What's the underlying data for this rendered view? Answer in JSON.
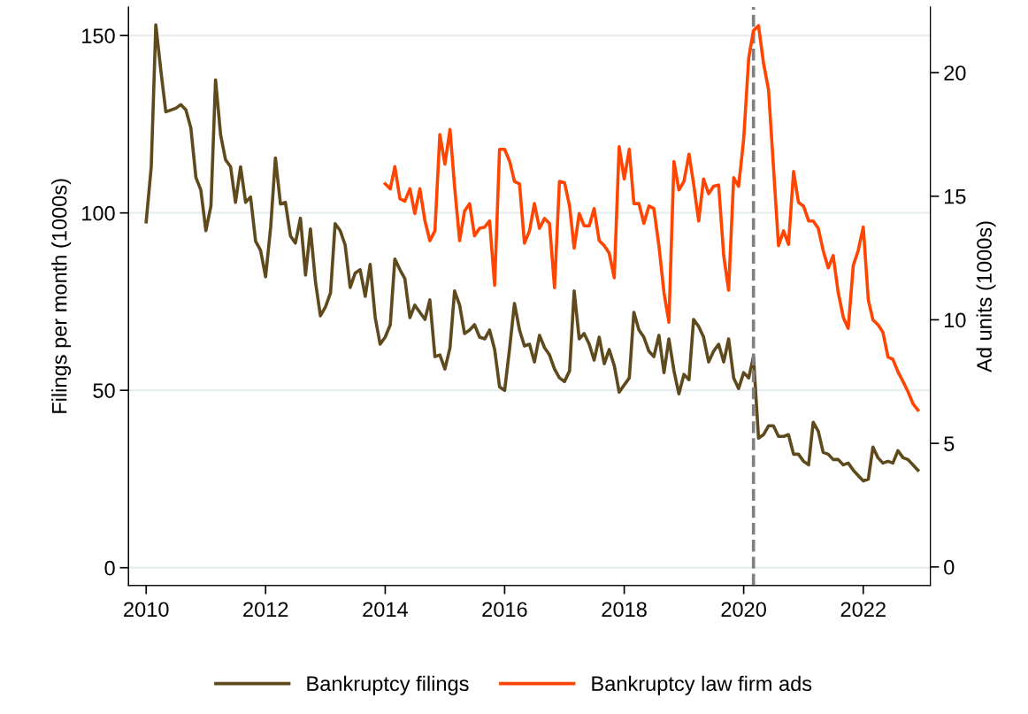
{
  "chart_data": {
    "type": "line",
    "ylabel": "Filings per month (1000s)",
    "y2label": "Ad units (1000s)",
    "x": [
      "2010-01",
      "2010-02",
      "2010-03",
      "2010-04",
      "2010-05",
      "2010-06",
      "2010-07",
      "2010-08",
      "2010-09",
      "2010-10",
      "2010-11",
      "2010-12",
      "2011-01",
      "2011-02",
      "2011-03",
      "2011-04",
      "2011-05",
      "2011-06",
      "2011-07",
      "2011-08",
      "2011-09",
      "2011-10",
      "2011-11",
      "2011-12",
      "2012-01",
      "2012-02",
      "2012-03",
      "2012-04",
      "2012-05",
      "2012-06",
      "2012-07",
      "2012-08",
      "2012-09",
      "2012-10",
      "2012-11",
      "2012-12",
      "2013-01",
      "2013-02",
      "2013-03",
      "2013-04",
      "2013-05",
      "2013-06",
      "2013-07",
      "2013-08",
      "2013-09",
      "2013-10",
      "2013-11",
      "2013-12",
      "2014-01",
      "2014-02",
      "2014-03",
      "2014-04",
      "2014-05",
      "2014-06",
      "2014-07",
      "2014-08",
      "2014-09",
      "2014-10",
      "2014-11",
      "2014-12",
      "2015-01",
      "2015-02",
      "2015-03",
      "2015-04",
      "2015-05",
      "2015-06",
      "2015-07",
      "2015-08",
      "2015-09",
      "2015-10",
      "2015-11",
      "2015-12",
      "2016-01",
      "2016-02",
      "2016-03",
      "2016-04",
      "2016-05",
      "2016-06",
      "2016-07",
      "2016-08",
      "2016-09",
      "2016-10",
      "2016-11",
      "2016-12",
      "2017-01",
      "2017-02",
      "2017-03",
      "2017-04",
      "2017-05",
      "2017-06",
      "2017-07",
      "2017-08",
      "2017-09",
      "2017-10",
      "2017-11",
      "2017-12",
      "2018-01",
      "2018-02",
      "2018-03",
      "2018-04",
      "2018-05",
      "2018-06",
      "2018-07",
      "2018-08",
      "2018-09",
      "2018-10",
      "2018-11",
      "2018-12",
      "2019-01",
      "2019-02",
      "2019-03",
      "2019-04",
      "2019-05",
      "2019-06",
      "2019-07",
      "2019-08",
      "2019-09",
      "2019-10",
      "2019-11",
      "2019-12",
      "2020-01",
      "2020-02",
      "2020-03",
      "2020-04",
      "2020-05",
      "2020-06",
      "2020-07",
      "2020-08",
      "2020-09",
      "2020-10",
      "2020-11",
      "2020-12",
      "2021-01",
      "2021-02",
      "2021-03",
      "2021-04",
      "2021-05",
      "2021-06",
      "2021-07",
      "2021-08",
      "2021-09",
      "2021-10",
      "2021-11",
      "2021-12",
      "2022-01",
      "2022-02",
      "2022-03",
      "2022-04",
      "2022-05",
      "2022-06",
      "2022-07",
      "2022-08",
      "2022-09",
      "2022-10",
      "2022-11",
      "2022-12"
    ],
    "series": [
      {
        "name": "Bankruptcy filings",
        "color": "#5e4a1c",
        "values": [
          97.5,
          113,
          153,
          140,
          128.5,
          129,
          129.5,
          130.5,
          129,
          124,
          110,
          106.5,
          95,
          102,
          137.5,
          122,
          115,
          113,
          103,
          113,
          103,
          104.5,
          92,
          89.5,
          82,
          96,
          115.5,
          102.5,
          103,
          93.5,
          91.5,
          98.5,
          82.5,
          95.5,
          80.5,
          71,
          73.5,
          77.5,
          97,
          95,
          91,
          79,
          83,
          84,
          76.5,
          85.5,
          70.5,
          63,
          65,
          68.5,
          87,
          84,
          81.5,
          70.5,
          74,
          72,
          70,
          75.5,
          59.5,
          60,
          56,
          62,
          78,
          74,
          66,
          67,
          68.5,
          65,
          64.5,
          67,
          61.5,
          51,
          50,
          62,
          74.5,
          67,
          62.5,
          63,
          58,
          65.5,
          62,
          60,
          56,
          53.5,
          52.5,
          55.5,
          78,
          64.5,
          66,
          63,
          58.5,
          65,
          57.5,
          61.5,
          57,
          49.5,
          51.5,
          53.5,
          72,
          67,
          65,
          61,
          59.5,
          65.5,
          55,
          64.5,
          55.5,
          49,
          54.5,
          53,
          70,
          68,
          65,
          58,
          61,
          63,
          58,
          64.5,
          53.5,
          50.5,
          55,
          53.5,
          59.5,
          36.5,
          37.5,
          40,
          40,
          37,
          37,
          37.5,
          32,
          32,
          30,
          29,
          41,
          38.5,
          32.5,
          32,
          30.5,
          30.5,
          29,
          29.5,
          27.5,
          26,
          24.5,
          25,
          34,
          31,
          29.5,
          30,
          29.5,
          33,
          31,
          30.5,
          29,
          27.5
        ]
      },
      {
        "name": "Bankruptcy law firm ads",
        "color": "#ff4500",
        "axis": "y2",
        "values": [
          null,
          null,
          null,
          null,
          null,
          null,
          null,
          null,
          null,
          null,
          null,
          null,
          null,
          null,
          null,
          null,
          null,
          null,
          null,
          null,
          null,
          null,
          null,
          null,
          null,
          null,
          null,
          null,
          null,
          null,
          null,
          null,
          null,
          null,
          null,
          null,
          null,
          null,
          null,
          null,
          null,
          null,
          null,
          null,
          null,
          null,
          null,
          null,
          15.5,
          15.3,
          16.2,
          14.9,
          14.8,
          15.3,
          14.3,
          15.3,
          14.0,
          13.2,
          13.6,
          17.5,
          16.3,
          17.7,
          15.4,
          13.2,
          14.4,
          14.7,
          13.4,
          13.7,
          13.75,
          14.0,
          11.4,
          16.9,
          16.9,
          16.4,
          15.6,
          15.5,
          13.1,
          13.6,
          14.7,
          13.7,
          14.1,
          13.9,
          11.3,
          15.6,
          15.55,
          14.6,
          12.9,
          14.3,
          13.8,
          13.8,
          14.5,
          13.2,
          13.0,
          12.7,
          11.7,
          17.0,
          15.7,
          16.9,
          14.7,
          14.7,
          13.9,
          14.6,
          14.5,
          13.0,
          11.1,
          9.9,
          16.4,
          15.25,
          15.6,
          16.7,
          15.5,
          14.0,
          15.7,
          15.1,
          15.4,
          15.45,
          12.6,
          11.2,
          15.75,
          15.4,
          17.3,
          20.6,
          21.7,
          21.9,
          20.4,
          19.3,
          16.2,
          13.0,
          13.6,
          13.05,
          16.0,
          14.75,
          14.6,
          14.0,
          14.0,
          13.7,
          12.8,
          12.1,
          12.6,
          11.1,
          10.1,
          9.65,
          12.2,
          12.8,
          13.75,
          10.8,
          10.0,
          9.8,
          9.5,
          8.5,
          8.4,
          7.9,
          7.5,
          7.1,
          6.6,
          6.35
        ]
      }
    ],
    "xlim": [
      "2009-09-15",
      "2023-02-15"
    ],
    "xticks": [
      {
        "value": "2010",
        "label": "2010"
      },
      {
        "value": "2012",
        "label": "2012"
      },
      {
        "value": "2014",
        "label": "2014"
      },
      {
        "value": "2016",
        "label": "2016"
      },
      {
        "value": "2018",
        "label": "2018"
      },
      {
        "value": "2020",
        "label": "2020"
      },
      {
        "value": "2022",
        "label": "2022"
      }
    ],
    "ylim": [
      -5,
      158
    ],
    "yticks": [
      0,
      50,
      100,
      150
    ],
    "y2lim": [
      -0.75,
      22.65
    ],
    "y2ticks": [
      0,
      5,
      10,
      15,
      20
    ],
    "ref_lines": [
      {
        "axis": "x",
        "value": "2020-03",
        "color": "#808080",
        "line_style": "dashed"
      }
    ],
    "grid": "y",
    "legend": "bottom",
    "marker": "none",
    "line_style": "solid"
  }
}
